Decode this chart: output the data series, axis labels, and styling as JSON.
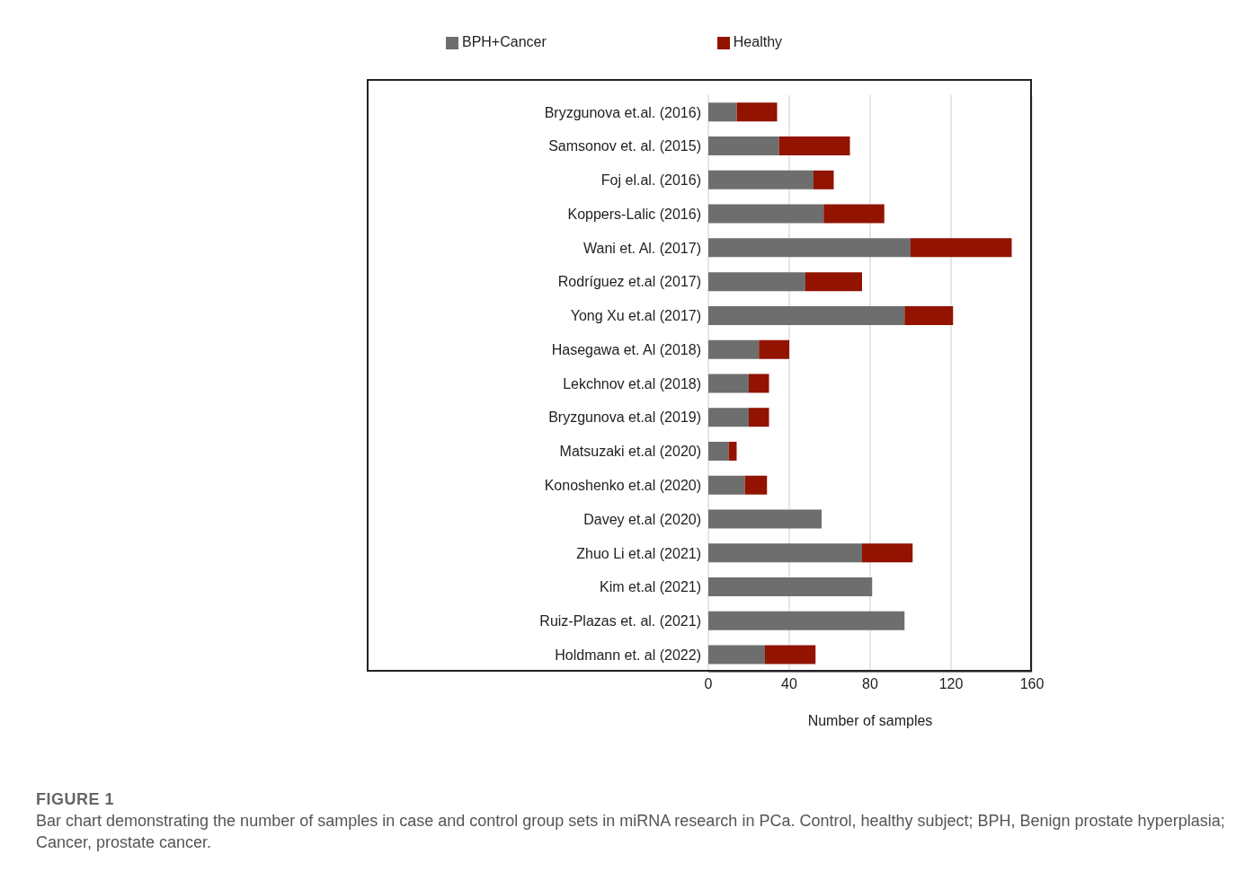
{
  "chart_data": {
    "type": "bar",
    "orientation": "horizontal",
    "stacked": true,
    "categories": [
      "Bryzgunova et.al. (2016)",
      "Samsonov et. al. (2015)",
      "Foj el.al. (2016)",
      "Koppers-Lalic (2016)",
      "Wani et. Al. (2017)",
      "Rodríguez et.al (2017)",
      "Yong Xu et.al (2017)",
      "Hasegawa et. Al (2018)",
      "Lekchnov et.al (2018)",
      "Bryzgunova et.al (2019)",
      "Matsuzaki et.al (2020)",
      "Konoshenko et.al (2020)",
      "Davey et.al (2020)",
      "Zhuo Li  et.al (2021)",
      "Kim et.al (2021)",
      "Ruiz-Plazas et. al. (2021)",
      "Holdmann et. al (2022)"
    ],
    "series": [
      {
        "name": "BPH+Cancer",
        "color": "#6e6e6e",
        "values": [
          14,
          35,
          52,
          57,
          100,
          48,
          97,
          25,
          20,
          20,
          10,
          18,
          56,
          76,
          81,
          97,
          28
        ]
      },
      {
        "name": "Healthy",
        "color": "#921300",
        "values": [
          20,
          35,
          10,
          30,
          50,
          28,
          24,
          15,
          10,
          10,
          4,
          11,
          0,
          25,
          0,
          0,
          25
        ]
      }
    ],
    "xlabel": "Number of samples",
    "xlim": [
      0,
      160
    ],
    "xticks": [
      0,
      40,
      80,
      120,
      160
    ],
    "grid": "x",
    "legend": "top",
    "annotations": [
      "FIGURE 1",
      "Bar chart demonstrating the number of samples in case and control group sets in miRNA research in PCa. Control, healthy subject; BPH, Benign prostate hyperplasia;  Cancer, prostate cancer."
    ]
  }
}
